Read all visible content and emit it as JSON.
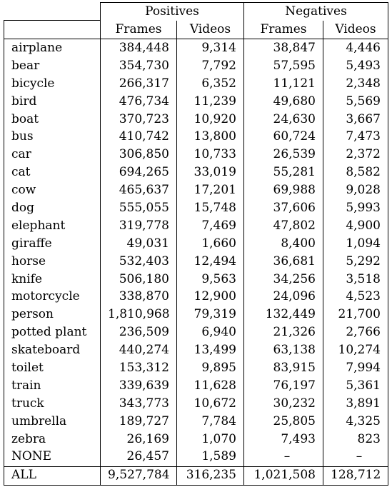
{
  "table": {
    "group_headers": [
      "Positives",
      "Negatives"
    ],
    "sub_headers": [
      "Frames",
      "Videos",
      "Frames",
      "Videos"
    ],
    "rows": [
      {
        "name": "airplane",
        "pos_frames": "384,448",
        "pos_videos": "9,314",
        "neg_frames": "38,847",
        "neg_videos": "4,446"
      },
      {
        "name": "bear",
        "pos_frames": "354,730",
        "pos_videos": "7,792",
        "neg_frames": "57,595",
        "neg_videos": "5,493"
      },
      {
        "name": "bicycle",
        "pos_frames": "266,317",
        "pos_videos": "6,352",
        "neg_frames": "11,121",
        "neg_videos": "2,348"
      },
      {
        "name": "bird",
        "pos_frames": "476,734",
        "pos_videos": "11,239",
        "neg_frames": "49,680",
        "neg_videos": "5,569"
      },
      {
        "name": "boat",
        "pos_frames": "370,723",
        "pos_videos": "10,920",
        "neg_frames": "24,630",
        "neg_videos": "3,667"
      },
      {
        "name": "bus",
        "pos_frames": "410,742",
        "pos_videos": "13,800",
        "neg_frames": "60,724",
        "neg_videos": "7,473"
      },
      {
        "name": "car",
        "pos_frames": "306,850",
        "pos_videos": "10,733",
        "neg_frames": "26,539",
        "neg_videos": "2,372"
      },
      {
        "name": "cat",
        "pos_frames": "694,265",
        "pos_videos": "33,019",
        "neg_frames": "55,281",
        "neg_videos": "8,582"
      },
      {
        "name": "cow",
        "pos_frames": "465,637",
        "pos_videos": "17,201",
        "neg_frames": "69,988",
        "neg_videos": "9,028"
      },
      {
        "name": "dog",
        "pos_frames": "555,055",
        "pos_videos": "15,748",
        "neg_frames": "37,606",
        "neg_videos": "5,993"
      },
      {
        "name": "elephant",
        "pos_frames": "319,778",
        "pos_videos": "7,469",
        "neg_frames": "47,802",
        "neg_videos": "4,900"
      },
      {
        "name": "giraffe",
        "pos_frames": "49,031",
        "pos_videos": "1,660",
        "neg_frames": "8,400",
        "neg_videos": "1,094"
      },
      {
        "name": "horse",
        "pos_frames": "532,403",
        "pos_videos": "12,494",
        "neg_frames": "36,681",
        "neg_videos": "5,292"
      },
      {
        "name": "knife",
        "pos_frames": "506,180",
        "pos_videos": "9,563",
        "neg_frames": "34,256",
        "neg_videos": "3,518"
      },
      {
        "name": "motorcycle",
        "pos_frames": "338,870",
        "pos_videos": "12,900",
        "neg_frames": "24,096",
        "neg_videos": "4,523"
      },
      {
        "name": "person",
        "pos_frames": "1,810,968",
        "pos_videos": "79,319",
        "neg_frames": "132,449",
        "neg_videos": "21,700"
      },
      {
        "name": "potted plant",
        "pos_frames": "236,509",
        "pos_videos": "6,940",
        "neg_frames": "21,326",
        "neg_videos": "2,766"
      },
      {
        "name": "skateboard",
        "pos_frames": "440,274",
        "pos_videos": "13,499",
        "neg_frames": "63,138",
        "neg_videos": "10,274"
      },
      {
        "name": "toilet",
        "pos_frames": "153,312",
        "pos_videos": "9,895",
        "neg_frames": "83,915",
        "neg_videos": "7,994"
      },
      {
        "name": "train",
        "pos_frames": "339,639",
        "pos_videos": "11,628",
        "neg_frames": "76,197",
        "neg_videos": "5,361"
      },
      {
        "name": "truck",
        "pos_frames": "343,773",
        "pos_videos": "10,672",
        "neg_frames": "30,232",
        "neg_videos": "3,891"
      },
      {
        "name": "umbrella",
        "pos_frames": "189,727",
        "pos_videos": "7,784",
        "neg_frames": "25,805",
        "neg_videos": "4,325"
      },
      {
        "name": "zebra",
        "pos_frames": "26,169",
        "pos_videos": "1,070",
        "neg_frames": "7,493",
        "neg_videos": "823"
      },
      {
        "name": "NONE",
        "pos_frames": "26,457",
        "pos_videos": "1,589",
        "neg_frames": "–",
        "neg_videos": "–"
      }
    ],
    "total": {
      "name": "ALL",
      "pos_frames": "9,527,784",
      "pos_videos": "316,235",
      "neg_frames": "1,021,508",
      "neg_videos": "128,712"
    }
  }
}
